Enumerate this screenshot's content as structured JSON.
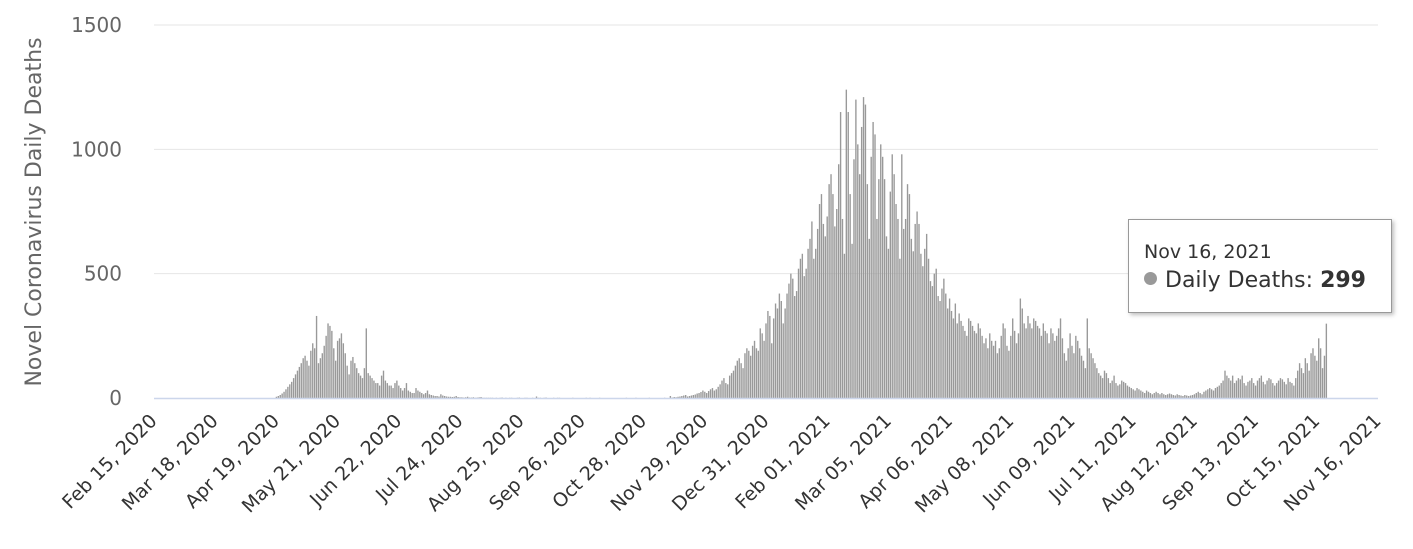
{
  "chart_data": {
    "type": "bar",
    "ylabel": "Novel Coronavirus Daily Deaths",
    "ylim": [
      0,
      1500
    ],
    "yticks": [
      0,
      500,
      1000,
      1500
    ],
    "grid": true,
    "bar_color": "#999999",
    "x_start": "2020-02-15",
    "x_end": "2021-11-16",
    "xtick_labels": [
      "Feb 15, 2020",
      "Mar 18, 2020",
      "Apr 19, 2020",
      "May 21, 2020",
      "Jun 22, 2020",
      "Jul 24, 2020",
      "Aug 25, 2020",
      "Sep 26, 2020",
      "Oct 28, 2020",
      "Nov 29, 2020",
      "Dec 31, 2020",
      "Feb 01, 2021",
      "Mar 05, 2021",
      "Apr 06, 2021",
      "May 08, 2021",
      "Jun 09, 2021",
      "Jul 11, 2021",
      "Aug 12, 2021",
      "Sep 13, 2021",
      "Oct 15, 2021",
      "Nov 16, 2021"
    ],
    "series": [
      {
        "values": [
          0,
          0,
          0,
          0,
          0,
          0,
          0,
          0,
          0,
          0,
          0,
          0,
          0,
          0,
          0,
          0,
          0,
          0,
          0,
          0,
          0,
          0,
          0,
          0,
          0,
          0,
          0,
          0,
          0,
          0,
          0,
          0,
          0,
          0,
          0,
          0,
          0,
          0,
          0,
          0,
          0,
          0,
          0,
          0,
          0,
          0,
          0,
          0,
          0,
          0,
          0,
          0,
          0,
          0,
          0,
          0,
          0,
          0,
          0,
          0,
          0,
          0,
          0,
          0,
          5,
          8,
          12,
          18,
          25,
          35,
          45,
          55,
          65,
          80,
          95,
          110,
          125,
          140,
          160,
          170,
          150,
          130,
          190,
          220,
          200,
          330,
          140,
          160,
          180,
          210,
          250,
          300,
          290,
          270,
          200,
          150,
          230,
          240,
          260,
          220,
          180,
          130,
          95,
          150,
          165,
          140,
          120,
          100,
          90,
          80,
          120,
          280,
          100,
          90,
          80,
          70,
          60,
          60,
          50,
          90,
          110,
          70,
          60,
          50,
          50,
          40,
          60,
          70,
          50,
          40,
          30,
          40,
          60,
          30,
          25,
          20,
          20,
          40,
          30,
          25,
          20,
          15,
          20,
          30,
          15,
          12,
          10,
          8,
          8,
          6,
          15,
          10,
          8,
          6,
          5,
          5,
          4,
          5,
          8,
          4,
          3,
          3,
          2,
          3,
          5,
          2,
          2,
          3,
          1,
          2,
          3,
          4,
          1,
          1,
          1,
          1,
          1,
          1,
          0,
          1,
          0,
          1,
          2,
          0,
          1,
          0,
          1,
          1,
          0,
          0,
          1,
          2,
          0,
          0,
          1,
          1,
          0,
          0,
          1,
          0,
          6,
          1,
          1,
          0,
          1,
          2,
          0,
          0,
          0,
          1,
          0,
          1,
          1,
          0,
          0,
          0,
          0,
          0,
          0,
          1,
          0,
          0,
          0,
          0,
          0,
          0,
          1,
          0,
          1,
          0,
          0,
          0,
          0,
          1,
          0,
          0,
          0,
          0,
          0,
          0,
          0,
          0,
          0,
          0,
          0,
          0,
          0,
          1,
          0,
          0,
          0,
          0,
          1,
          0,
          0,
          0,
          0,
          0,
          0,
          1,
          0,
          0,
          0,
          0,
          0,
          0,
          0,
          1,
          0,
          0,
          8,
          2,
          4,
          3,
          5,
          6,
          8,
          10,
          12,
          6,
          8,
          10,
          12,
          14,
          18,
          20,
          24,
          30,
          25,
          20,
          28,
          35,
          40,
          30,
          35,
          45,
          55,
          70,
          80,
          60,
          55,
          90,
          100,
          110,
          130,
          150,
          160,
          140,
          120,
          180,
          200,
          190,
          170,
          210,
          230,
          200,
          190,
          280,
          260,
          230,
          300,
          350,
          330,
          220,
          320,
          380,
          360,
          420,
          390,
          300,
          360,
          420,
          460,
          500,
          480,
          410,
          430,
          520,
          560,
          580,
          490,
          520,
          600,
          640,
          710,
          560,
          600,
          680,
          780,
          820,
          700,
          650,
          730,
          860,
          900,
          820,
          690,
          760,
          940,
          1150,
          720,
          580,
          1240,
          1150,
          820,
          620,
          960,
          1200,
          1020,
          900,
          1090,
          1210,
          1180,
          860,
          640,
          970,
          1110,
          1060,
          720,
          880,
          1020,
          970,
          880,
          650,
          600,
          830,
          980,
          900,
          780,
          720,
          560,
          980,
          680,
          720,
          860,
          820,
          640,
          590,
          700,
          750,
          700,
          580,
          530,
          600,
          660,
          560,
          470,
          450,
          500,
          520,
          410,
          390,
          440,
          480,
          420,
          360,
          400,
          350,
          320,
          380,
          300,
          340,
          310,
          290,
          270,
          250,
          320,
          310,
          290,
          270,
          260,
          300,
          280,
          250,
          220,
          240,
          200,
          260,
          230,
          210,
          230,
          180,
          200,
          250,
          300,
          280,
          210,
          190,
          250,
          320,
          270,
          220,
          260,
          400,
          360,
          300,
          280,
          330,
          300,
          280,
          320,
          310,
          290,
          280,
          250,
          300,
          270,
          260,
          220,
          280,
          260,
          230,
          250,
          280,
          320,
          240,
          180,
          150,
          200,
          260,
          210,
          180,
          250,
          230,
          200,
          170,
          150,
          120,
          320,
          200,
          180,
          160,
          140,
          120,
          100,
          90,
          80,
          110,
          100,
          80,
          60,
          70,
          90,
          60,
          50,
          55,
          70,
          65,
          60,
          50,
          45,
          40,
          35,
          30,
          40,
          35,
          30,
          25,
          20,
          30,
          25,
          20,
          15,
          20,
          25,
          20,
          15,
          20,
          15,
          12,
          15,
          18,
          15,
          12,
          10,
          15,
          12,
          10,
          8,
          12,
          10,
          8,
          10,
          12,
          15,
          20,
          25,
          20,
          15,
          25,
          30,
          35,
          40,
          35,
          30,
          40,
          45,
          50,
          60,
          70,
          110,
          90,
          80,
          70,
          90,
          60,
          70,
          80,
          75,
          90,
          60,
          50,
          65,
          70,
          80,
          60,
          50,
          70,
          80,
          90,
          65,
          55,
          70,
          80,
          75,
          60,
          50,
          60,
          70,
          80,
          75,
          65,
          55,
          80,
          65,
          60,
          50,
          80,
          110,
          140,
          120,
          100,
          160,
          140,
          110,
          180,
          200,
          170,
          150,
          240,
          200,
          120,
          170,
          299
        ]
      }
    ]
  },
  "tooltip": {
    "date": "Nov 16, 2021",
    "series_label": "Daily Deaths: ",
    "value": "299"
  }
}
